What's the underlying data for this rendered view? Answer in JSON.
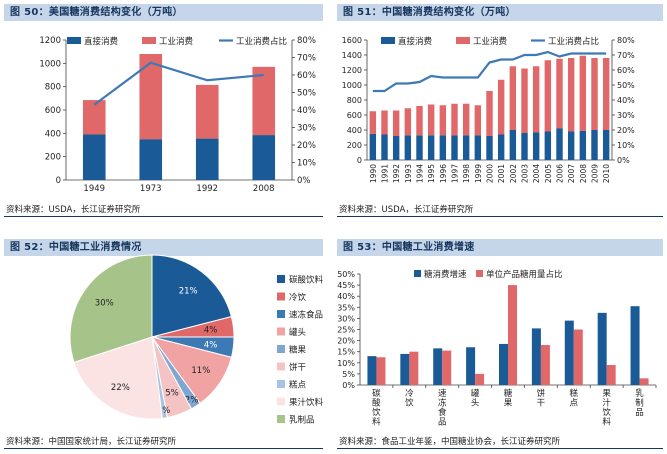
{
  "colors": {
    "direct": "#1a5a96",
    "industrial": "#e06868",
    "share_line": "#3d7ab5",
    "axis": "#444444",
    "title_bg": "#c6d6ea",
    "title_text": "#17365d"
  },
  "chart_data": [
    {
      "id": "fig50",
      "type": "bar",
      "title": "图 50：美国糖消费结构变化（万吨）",
      "source": "资料来源：USDA，长江证券研究所",
      "categories": [
        "1949",
        "1973",
        "1992",
        "2008"
      ],
      "series": [
        {
          "name": "直接消费",
          "values": [
            390,
            350,
            355,
            385
          ]
        },
        {
          "name": "工业消费",
          "values": [
            295,
            730,
            460,
            585
          ]
        },
        {
          "name": "工业消费占比",
          "axis": "right",
          "values": [
            43,
            67,
            57,
            60
          ]
        }
      ],
      "ylim": [
        0,
        1200
      ],
      "yticks": [
        "0",
        "200",
        "400",
        "600",
        "800",
        "1000",
        "1200"
      ],
      "y2lim": [
        0,
        80
      ],
      "y2ticks": [
        "0%",
        "10%",
        "20%",
        "30%",
        "40%",
        "50%",
        "60%",
        "70%",
        "80%"
      ]
    },
    {
      "id": "fig51",
      "type": "bar",
      "title": "图 51：中国糖消费结构变化（万吨）",
      "source": "资料来源：USDA，长江证券研究所",
      "categories": [
        "1990",
        "1991",
        "1992",
        "1993",
        "1994",
        "1995",
        "1996",
        "1997",
        "1998",
        "1999",
        "2000",
        "2001",
        "2002",
        "2003",
        "2004",
        "2005",
        "2006",
        "2007",
        "2008",
        "2009",
        "2010"
      ],
      "series": [
        {
          "name": "直接消费",
          "values": [
            350,
            340,
            320,
            330,
            330,
            330,
            330,
            330,
            330,
            330,
            320,
            340,
            400,
            360,
            370,
            380,
            420,
            380,
            390,
            400,
            400
          ]
        },
        {
          "name": "工业消费",
          "values": [
            300,
            320,
            340,
            360,
            390,
            410,
            400,
            420,
            420,
            400,
            600,
            730,
            850,
            860,
            880,
            950,
            930,
            980,
            1000,
            960,
            960
          ]
        },
        {
          "name": "工业消费占比",
          "axis": "right",
          "values": [
            46,
            46,
            51,
            51,
            52,
            56,
            55,
            55,
            55,
            55,
            65,
            67,
            67,
            70,
            70,
            72,
            69,
            71,
            71,
            71,
            71
          ]
        }
      ],
      "ylim": [
        0,
        1600
      ],
      "yticks": [
        "0",
        "200",
        "400",
        "600",
        "800",
        "1000",
        "1200",
        "1400",
        "1600"
      ],
      "y2lim": [
        0,
        80
      ],
      "y2ticks": [
        "0%",
        "10%",
        "20%",
        "30%",
        "40%",
        "50%",
        "60%",
        "70%",
        "80%"
      ]
    },
    {
      "id": "fig52",
      "type": "pie",
      "title": "图 52：中国糖工业消费情况",
      "source": "资料来源：中国国家统计局，长江证券研究所",
      "labels": [
        "碳酸饮料",
        "冷饮",
        "速冻食品",
        "罐头",
        "糖果",
        "饼干",
        "糕点",
        "果汁饮料",
        "乳制品"
      ],
      "values": [
        21,
        4,
        4,
        11,
        2,
        5,
        1,
        22,
        30
      ],
      "value_labels": [
        "21%",
        "4%",
        "4%",
        "11%",
        "2%",
        "5%",
        "1%",
        "22%",
        "30%"
      ],
      "slice_colors": [
        "#1a5a96",
        "#e06868",
        "#3d7ab5",
        "#f1a3a3",
        "#7fa7d1",
        "#f4c4c4",
        "#a9c4e2",
        "#fbe3e3",
        "#a6c48a"
      ]
    },
    {
      "id": "fig53",
      "type": "bar",
      "title": "图 53：中国糖工业消费增速",
      "source": "资料来源：食品工业年鉴，中国糖业协会，长江证券研究所",
      "categories": [
        "碳酸饮料",
        "冷饮",
        "速冻食品",
        "罐头",
        "糖果",
        "饼干",
        "糕点",
        "果汁饮料",
        "乳制品"
      ],
      "series": [
        {
          "name": "糖消费增速",
          "values": [
            13,
            14,
            16.5,
            17,
            18.5,
            25.5,
            29,
            32.5,
            35.5
          ]
        },
        {
          "name": "单位产品糖用量占比",
          "values": [
            12.5,
            15,
            15.5,
            5,
            45,
            18,
            25,
            9,
            3
          ]
        }
      ],
      "ylim": [
        0,
        50
      ],
      "yticks": [
        "0%",
        "5%",
        "10%",
        "15%",
        "20%",
        "25%",
        "30%",
        "35%",
        "40%",
        "45%",
        "50%"
      ]
    }
  ]
}
